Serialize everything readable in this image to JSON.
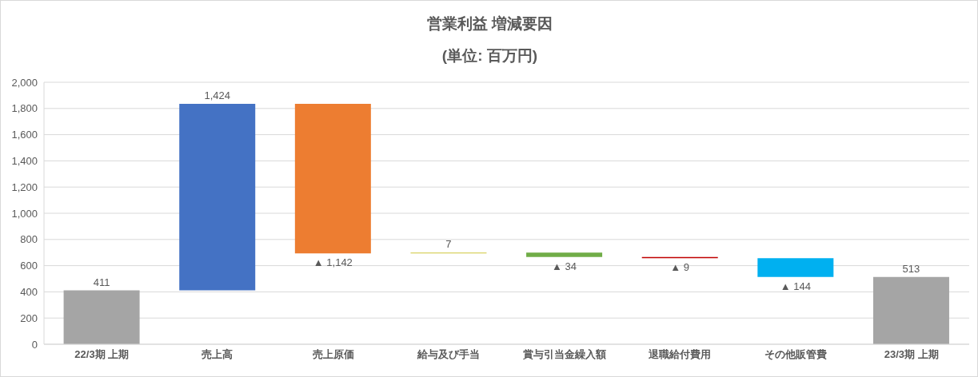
{
  "chart_data": {
    "type": "bar",
    "title": "営業利益 増減要因",
    "subtitle": "(単位: 百万円)",
    "categories": [
      "22/3期 上期",
      "売上高",
      "売上原価",
      "給与及び手当",
      "賞与引当金繰入額",
      "退職給付費用",
      "その他販管費",
      "23/3期 上期"
    ],
    "values": [
      411,
      1424,
      -1142,
      7,
      -34,
      -9,
      -144,
      513
    ],
    "base": [
      0,
      411,
      1835,
      693,
      700,
      666,
      657,
      0
    ],
    "colors": [
      "#a5a5a5",
      "#4472c4",
      "#ed7d31",
      "#cfc63a",
      "#70ad47",
      "#c00000",
      "#00b0f0",
      "#a5a5a5"
    ],
    "value_labels": [
      "411",
      "1,424",
      "▲ 1,142",
      "7",
      "▲ 34",
      "▲ 9",
      "▲ 144",
      "513"
    ],
    "ylim": [
      0,
      2000
    ],
    "yticks": [
      0,
      200,
      400,
      600,
      800,
      {
        "value": 1000,
        "label": "1,000"
      },
      {
        "value": 1200,
        "label": "1,200"
      },
      {
        "value": 1400,
        "label": "1,400"
      },
      {
        "value": 1600,
        "label": "1,600"
      },
      {
        "value": 1800,
        "label": "1,800"
      },
      {
        "value": 2000,
        "label": "2,000"
      }
    ],
    "grid": "y"
  }
}
